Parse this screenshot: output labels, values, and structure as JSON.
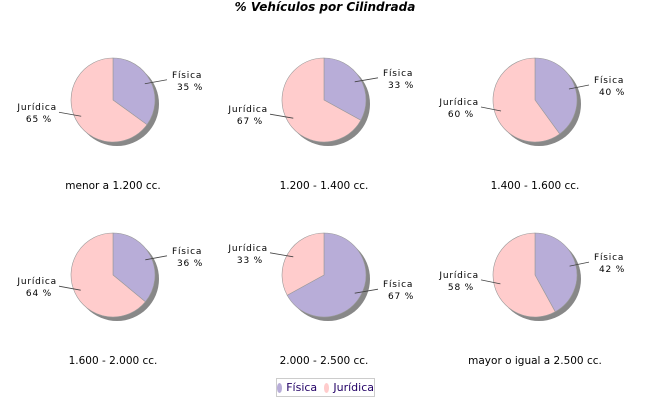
{
  "chart_data": {
    "type": "pie",
    "title": "% Vehículos por Cilindrada",
    "legend": {
      "position": "bottom",
      "entries": [
        "Física",
        "Jurídica"
      ]
    },
    "colors": {
      "Física": "#b8add8",
      "Jurídica": "#ffcccc",
      "shadow": "#888888"
    },
    "pies": [
      {
        "label": "menor a 1.200 cc.",
        "values": {
          "Física": 35,
          "Jurídica": 65
        }
      },
      {
        "label": "1.200 - 1.400 cc.",
        "values": {
          "Física": 33,
          "Jurídica": 67
        }
      },
      {
        "label": "1.400 - 1.600 cc.",
        "values": {
          "Física": 40,
          "Jurídica": 60
        }
      },
      {
        "label": "1.600 - 2.000 cc.",
        "values": {
          "Física": 36,
          "Jurídica": 64
        }
      },
      {
        "label": "2.000 - 2.500 cc.",
        "values": {
          "Física": 67,
          "Jurídica": 33
        }
      },
      {
        "label": "mayor o igual a 2.500 cc.",
        "values": {
          "Física": 42,
          "Jurídica": 58
        }
      }
    ]
  }
}
